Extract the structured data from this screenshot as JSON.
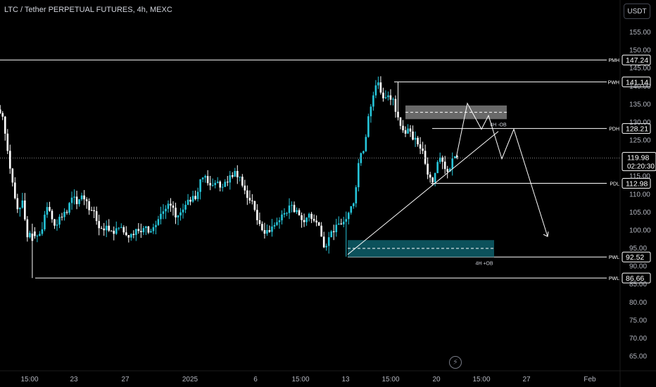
{
  "header": {
    "title": "LTC / Tether PERPETUAL FUTURES, 4h, MEXC",
    "currency": "USDT"
  },
  "colors": {
    "up": "#26c6da",
    "down": "#ffffff",
    "levels": "#ffffff",
    "bullish_ob": "#0e5f6b",
    "bearish_ob": "#7b7b7b"
  },
  "icons": {
    "flash": "lightning-bolt-icon"
  },
  "chart_data": {
    "type": "candlestick",
    "price_axis": {
      "min": 61,
      "max": 160,
      "ticks": [
        "155.00",
        "150.00",
        "145.00",
        "140.00",
        "135.00",
        "130.00",
        "125.00",
        "115.00",
        "110.00",
        "105.00",
        "100.00",
        "95.00",
        "90.00",
        "85.00",
        "80.00",
        "75.00",
        "70.00",
        "65.00"
      ]
    },
    "time_axis": {
      "ticks": [
        "15:00",
        "23",
        "27",
        "2025",
        "6",
        "15:00",
        "13",
        "15:00",
        "20",
        "15:00",
        "27",
        "Feb"
      ]
    },
    "current_price": {
      "value": "119.98",
      "countdown": "02:20:30"
    },
    "levels": [
      {
        "label": "PMH",
        "price": 147.24,
        "text": "147.24"
      },
      {
        "label": "PWH",
        "price": 141.14,
        "text": "141.14"
      },
      {
        "label": "PDH",
        "price": 128.21,
        "text": "128.21"
      },
      {
        "label": "PDL",
        "price": 112.98,
        "text": "112.98"
      },
      {
        "label": "PWL",
        "price": 92.52,
        "text": "92.52"
      },
      {
        "label": "PWL",
        "price": 86.66,
        "text": "86.66"
      }
    ],
    "order_blocks": [
      {
        "label": "4H -OB",
        "type": "bearish",
        "top": 134.6,
        "bottom": 130.8,
        "mid": 132.7
      },
      {
        "label": "4H +OB",
        "type": "bullish",
        "top": 97.2,
        "bottom": 92.5,
        "mid": 94.9
      }
    ],
    "trendline": {
      "from_price": 93.2,
      "to_price": 127.4
    },
    "projected_path": [
      120.0,
      135.2,
      128.0,
      131.8,
      119.8,
      128.0,
      98.2
    ],
    "candle_closes": [
      131.5,
      122.0,
      113.2,
      105.8,
      108.2,
      98.0,
      99.6,
      98.4,
      100.2,
      106.4,
      103.0,
      101.5,
      103.6,
      104.8,
      109.0,
      107.2,
      109.6,
      108.0,
      105.5,
      102.5,
      100.4,
      101.2,
      99.8,
      100.5,
      100.8,
      98.6,
      98.9,
      100.3,
      99.4,
      101.0,
      99.7,
      101.4,
      104.5,
      105.9,
      106.8,
      103.5,
      104.9,
      107.0,
      107.9,
      108.6,
      114.1,
      115.0,
      112.4,
      113.1,
      111.8,
      113.4,
      115.2,
      116.4,
      114.8,
      111.0,
      108.2,
      105.6,
      101.7,
      99.0,
      99.5,
      101.4,
      102.7,
      104.7,
      106.8,
      105.0,
      104.1,
      102.2,
      104.5,
      102.6,
      101.2,
      95.2,
      98.0,
      99.4,
      101.8,
      102.3,
      104.8,
      107.4,
      118.6,
      121.9,
      131.6,
      137.4,
      141.0,
      136.6,
      137.4,
      136.4,
      131.3,
      127.7,
      128.2,
      125.1,
      123.8,
      122.0,
      115.4,
      113.3,
      118.9,
      119.0,
      116.2,
      119.9,
      120.3
    ]
  }
}
